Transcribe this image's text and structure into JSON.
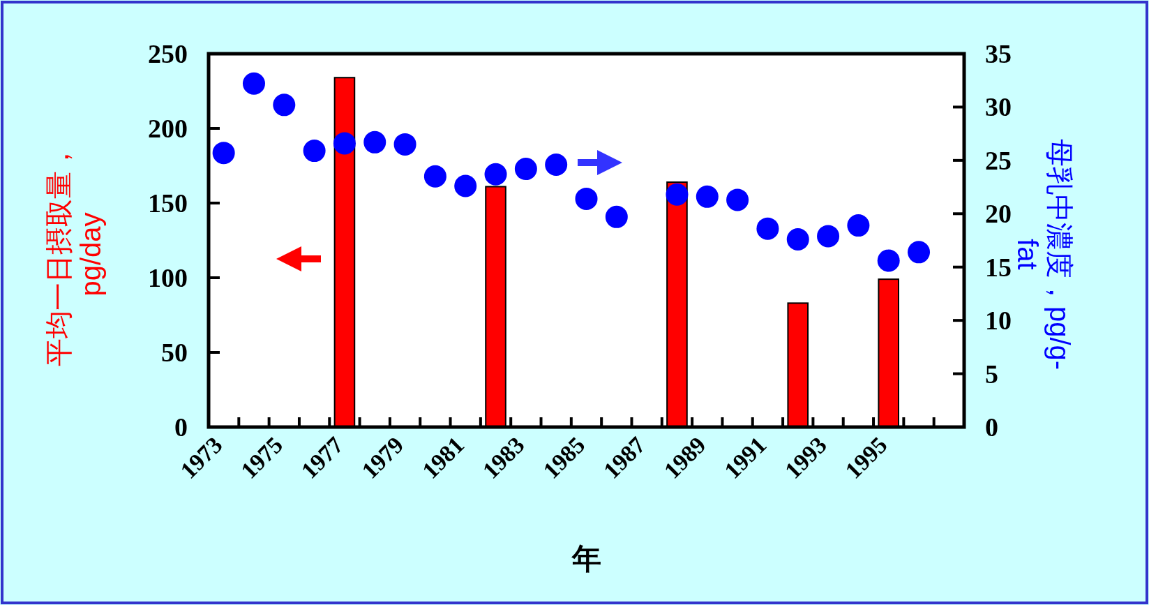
{
  "chart_data": {
    "type": "bar",
    "xlabel": "年",
    "ylabel": "平均一日摂取量，\npg/day",
    "y2label": "母乳中濃度，pg/g-\nfat",
    "categories": [
      "1973",
      null,
      "1975",
      null,
      "1977",
      null,
      "1979",
      null,
      "1981",
      null,
      "1983",
      null,
      "1985",
      null,
      "1987",
      null,
      "1989",
      null,
      "1991",
      null,
      "1993",
      null,
      "1995",
      null,
      null
    ],
    "series": [
      {
        "color": "#ff0000",
        "values": [
          null,
          null,
          null,
          null,
          234,
          null,
          null,
          null,
          null,
          161,
          null,
          null,
          null,
          null,
          null,
          164,
          null,
          null,
          null,
          83,
          null,
          null,
          99,
          null,
          null
        ]
      },
      {
        "type": "scatter",
        "axis": "y2",
        "color": "#0000ff",
        "values": [
          25.7,
          32.2,
          30.2,
          25.9,
          26.6,
          26.7,
          26.5,
          23.5,
          22.6,
          23.7,
          24.2,
          24.6,
          21.4,
          19.7,
          null,
          21.8,
          21.6,
          21.3,
          18.6,
          17.6,
          17.9,
          18.9,
          15.6,
          16.4,
          null
        ]
      }
    ],
    "ylim": [
      0,
      250
    ],
    "yticks": [
      0,
      50,
      100,
      150,
      200,
      250
    ],
    "y2lim": [
      0,
      35
    ],
    "y2ticks": [
      0,
      5,
      10,
      15,
      20,
      25,
      30,
      35
    ],
    "marker": "circle",
    "grid": false
  }
}
